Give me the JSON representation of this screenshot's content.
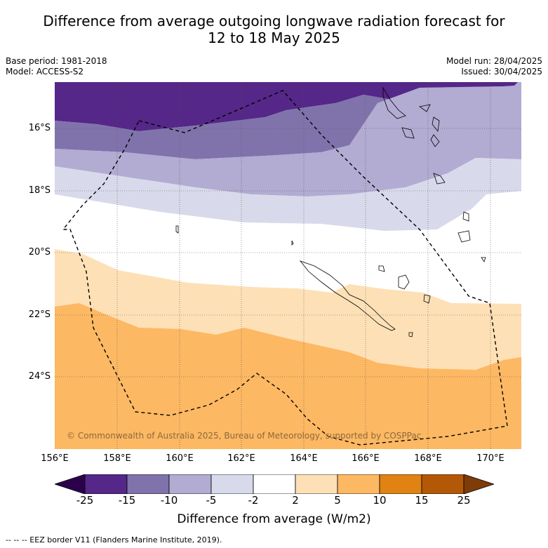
{
  "title_line1": "Difference from average outgoing longwave radiation forecast for",
  "title_line2": "12 to 18 May 2025",
  "base_period": "Base period: 1981-2018",
  "model": "Model: ACCESS-S2",
  "model_run": "Model run: 28/04/2025",
  "issued": "Issued: 30/04/2025",
  "lat_labels": [
    "16°S",
    "18°S",
    "20°S",
    "22°S",
    "24°S"
  ],
  "lon_labels": [
    "156°E",
    "158°E",
    "160°E",
    "162°E",
    "164°E",
    "166°E",
    "168°E",
    "170°E"
  ],
  "copyright": "© Commonwealth of Australia 2025, Bureau of Meteorology, supported by COSPPac",
  "colorbar": {
    "ticks": [
      "-25",
      "-15",
      "-10",
      "-5",
      "-2",
      "2",
      "5",
      "10",
      "15",
      "25"
    ],
    "title": "Difference from average (W/m2)",
    "colors": [
      "#2d004b",
      "#542788",
      "#8073ac",
      "#b2abd2",
      "#d8daeb",
      "#ffffff",
      "#fee0b6",
      "#fdb863",
      "#e08214",
      "#b35806",
      "#7f3b08"
    ]
  },
  "footnote": "--  --  -- EEZ border V11 (Flanders Marine Institute, 2019)."
}
